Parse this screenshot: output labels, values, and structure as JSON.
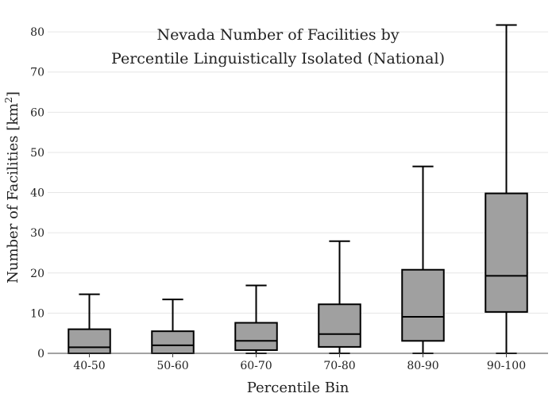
{
  "chart_data": {
    "type": "box",
    "title_line1": "Nevada Number of Facilities by",
    "title_line2": "Percentile Linguistically Isolated (National)",
    "xlabel": "Percentile Bin",
    "ylabel_main": "Number of Facilities  [km",
    "ylabel_sup": "2",
    "ylabel_end": "]",
    "ylim": [
      0,
      82
    ],
    "yticks": [
      0,
      10,
      20,
      30,
      40,
      50,
      60,
      70,
      80
    ],
    "grid": true,
    "categories": [
      "40-50",
      "50-60",
      "60-70",
      "70-80",
      "80-90",
      "90-100"
    ],
    "boxes": [
      {
        "min": 0,
        "q1": 0,
        "median": 1.5,
        "q3": 6,
        "max": 14.7
      },
      {
        "min": 0,
        "q1": 0,
        "median": 2,
        "q3": 5.5,
        "max": 13.4
      },
      {
        "min": 0,
        "q1": 0.8,
        "median": 3.1,
        "q3": 7.6,
        "max": 16.9
      },
      {
        "min": 0,
        "q1": 1.6,
        "median": 4.8,
        "q3": 12.2,
        "max": 27.9
      },
      {
        "min": 0,
        "q1": 3.1,
        "median": 9.1,
        "q3": 20.8,
        "max": 46.5
      },
      {
        "min": 0,
        "q1": 10.3,
        "median": 19.3,
        "q3": 39.8,
        "max": 81.7
      }
    ],
    "colors": {
      "box_fill": "#a0a0a0",
      "stroke": "#000000",
      "grid": "#e6e6e6"
    }
  }
}
